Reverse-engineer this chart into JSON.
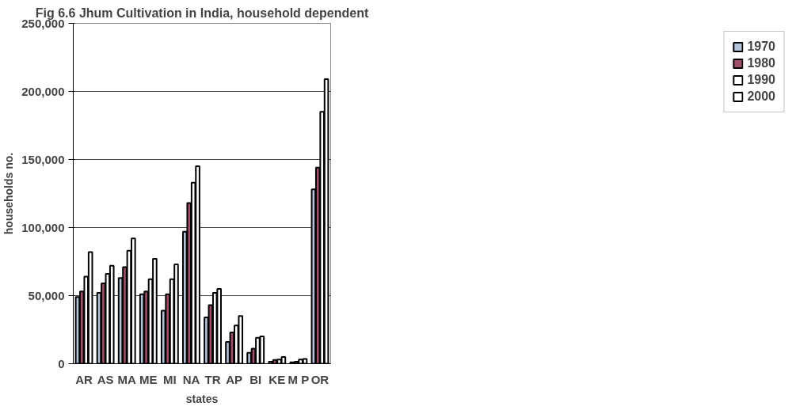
{
  "chart_data": {
    "type": "bar",
    "title": "Fig 6.6 Jhum Cultivation in India, household dependent",
    "xlabel": "states",
    "ylabel": "households no.",
    "categories": [
      "AR",
      "AS",
      "MA",
      "ME",
      "MI",
      "NA",
      "TR",
      "AP",
      "BI",
      "KE",
      "M P",
      "OR"
    ],
    "series": [
      {
        "name": "1970",
        "color": "#b4c4d8",
        "values": [
          49000,
          52000,
          63000,
          51000,
          39000,
          97000,
          34000,
          16000,
          8000,
          1500,
          1000,
          128000
        ]
      },
      {
        "name": "1980",
        "color": "#a0506a",
        "values": [
          53000,
          59000,
          71000,
          53000,
          51000,
          118000,
          43000,
          23000,
          11000,
          2700,
          1500,
          144000
        ]
      },
      {
        "name": "1990",
        "color": "#ffffff",
        "values": [
          64000,
          66000,
          83000,
          62000,
          62000,
          133000,
          52000,
          28000,
          19000,
          3000,
          3000,
          185000
        ]
      },
      {
        "name": "2000",
        "color": "#ffffff",
        "values": [
          82000,
          72000,
          92000,
          77000,
          73000,
          145000,
          55000,
          35000,
          20000,
          5000,
          3500,
          209000
        ]
      }
    ],
    "ylim": [
      0,
      250000
    ],
    "yticks": [
      {
        "value": 0,
        "label": "0"
      },
      {
        "value": 50000,
        "label": "50,000"
      },
      {
        "value": 100000,
        "label": "100,000"
      },
      {
        "value": 150000,
        "label": "150,000"
      },
      {
        "value": 200000,
        "label": "200,000"
      },
      {
        "value": 250000,
        "label": "250,000"
      }
    ],
    "grid": "y",
    "legend": "right"
  }
}
